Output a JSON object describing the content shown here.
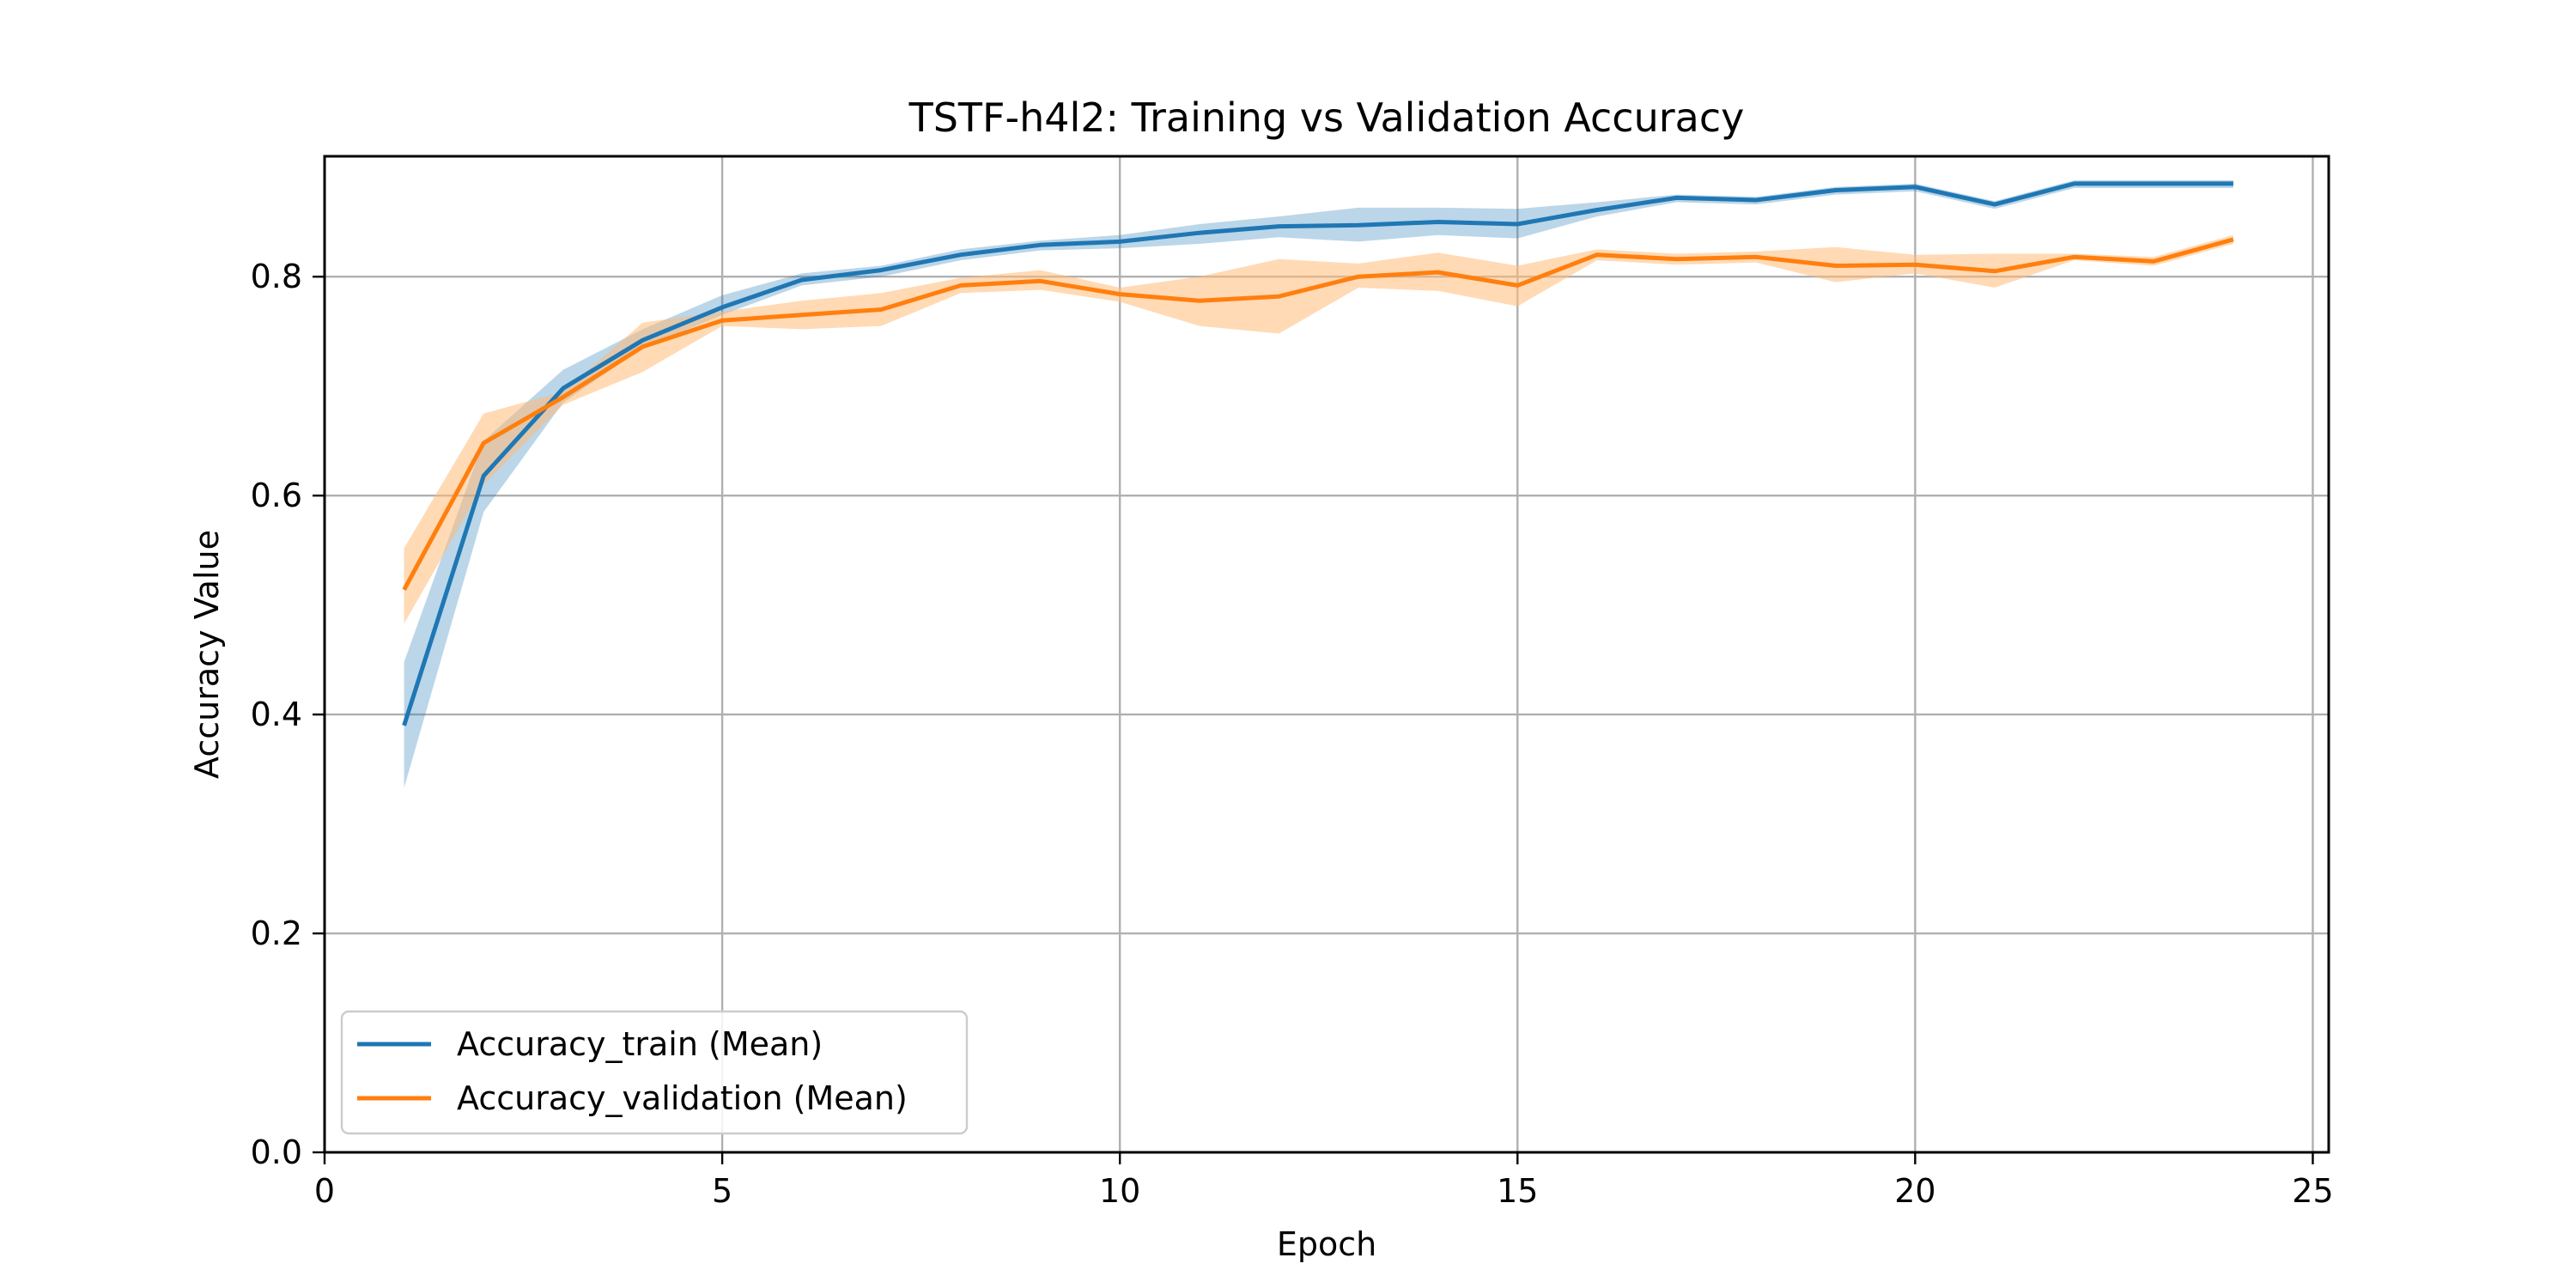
{
  "chart_data": {
    "type": "line",
    "title": "TSTF-h4l2: Training vs Validation Accuracy",
    "xlabel": "Epoch",
    "ylabel": "Accuracy Value",
    "xlim": [
      0,
      25.2
    ],
    "ylim": [
      0,
      0.91
    ],
    "xticks": [
      0,
      5,
      10,
      15,
      20,
      25
    ],
    "yticks": [
      0.0,
      0.2,
      0.4,
      0.6,
      0.8
    ],
    "grid": true,
    "legend_position": "lower-left",
    "x": [
      1,
      2,
      3,
      4,
      5,
      6,
      7,
      8,
      9,
      10,
      11,
      12,
      13,
      14,
      15,
      16,
      17,
      18,
      19,
      20,
      21,
      22,
      23,
      24
    ],
    "series": [
      {
        "name": "Accuracy_train (Mean)",
        "color": "#1f77b4",
        "band_color": "#1f77b4",
        "values": [
          0.39,
          0.618,
          0.698,
          0.742,
          0.772,
          0.797,
          0.806,
          0.82,
          0.829,
          0.832,
          0.84,
          0.846,
          0.847,
          0.85,
          0.848,
          0.861,
          0.872,
          0.87,
          0.879,
          0.882,
          0.866,
          0.885,
          0.885,
          0.885
        ],
        "lower": [
          0.333,
          0.585,
          0.685,
          0.735,
          0.765,
          0.792,
          0.8,
          0.815,
          0.824,
          0.826,
          0.83,
          0.836,
          0.832,
          0.838,
          0.835,
          0.855,
          0.868,
          0.866,
          0.875,
          0.878,
          0.862,
          0.881,
          0.881,
          0.881
        ],
        "upper": [
          0.448,
          0.65,
          0.715,
          0.752,
          0.783,
          0.803,
          0.81,
          0.825,
          0.833,
          0.838,
          0.848,
          0.855,
          0.863,
          0.863,
          0.862,
          0.868,
          0.875,
          0.873,
          0.882,
          0.885,
          0.869,
          0.888,
          0.888,
          0.888
        ]
      },
      {
        "name": "Accuracy_validation (Mean)",
        "color": "#ff7f0e",
        "band_color": "#ffbb78",
        "values": [
          0.514,
          0.648,
          0.69,
          0.736,
          0.76,
          0.765,
          0.77,
          0.792,
          0.796,
          0.784,
          0.778,
          0.782,
          0.8,
          0.804,
          0.792,
          0.82,
          0.816,
          0.818,
          0.81,
          0.811,
          0.805,
          0.818,
          0.814,
          0.834
        ],
        "lower": [
          0.483,
          0.61,
          0.683,
          0.713,
          0.755,
          0.752,
          0.755,
          0.785,
          0.788,
          0.777,
          0.755,
          0.748,
          0.79,
          0.787,
          0.773,
          0.815,
          0.811,
          0.813,
          0.795,
          0.803,
          0.79,
          0.815,
          0.81,
          0.83
        ],
        "upper": [
          0.552,
          0.675,
          0.695,
          0.758,
          0.768,
          0.778,
          0.785,
          0.799,
          0.806,
          0.79,
          0.8,
          0.816,
          0.812,
          0.822,
          0.81,
          0.825,
          0.821,
          0.823,
          0.827,
          0.82,
          0.821,
          0.821,
          0.818,
          0.838
        ]
      }
    ]
  }
}
